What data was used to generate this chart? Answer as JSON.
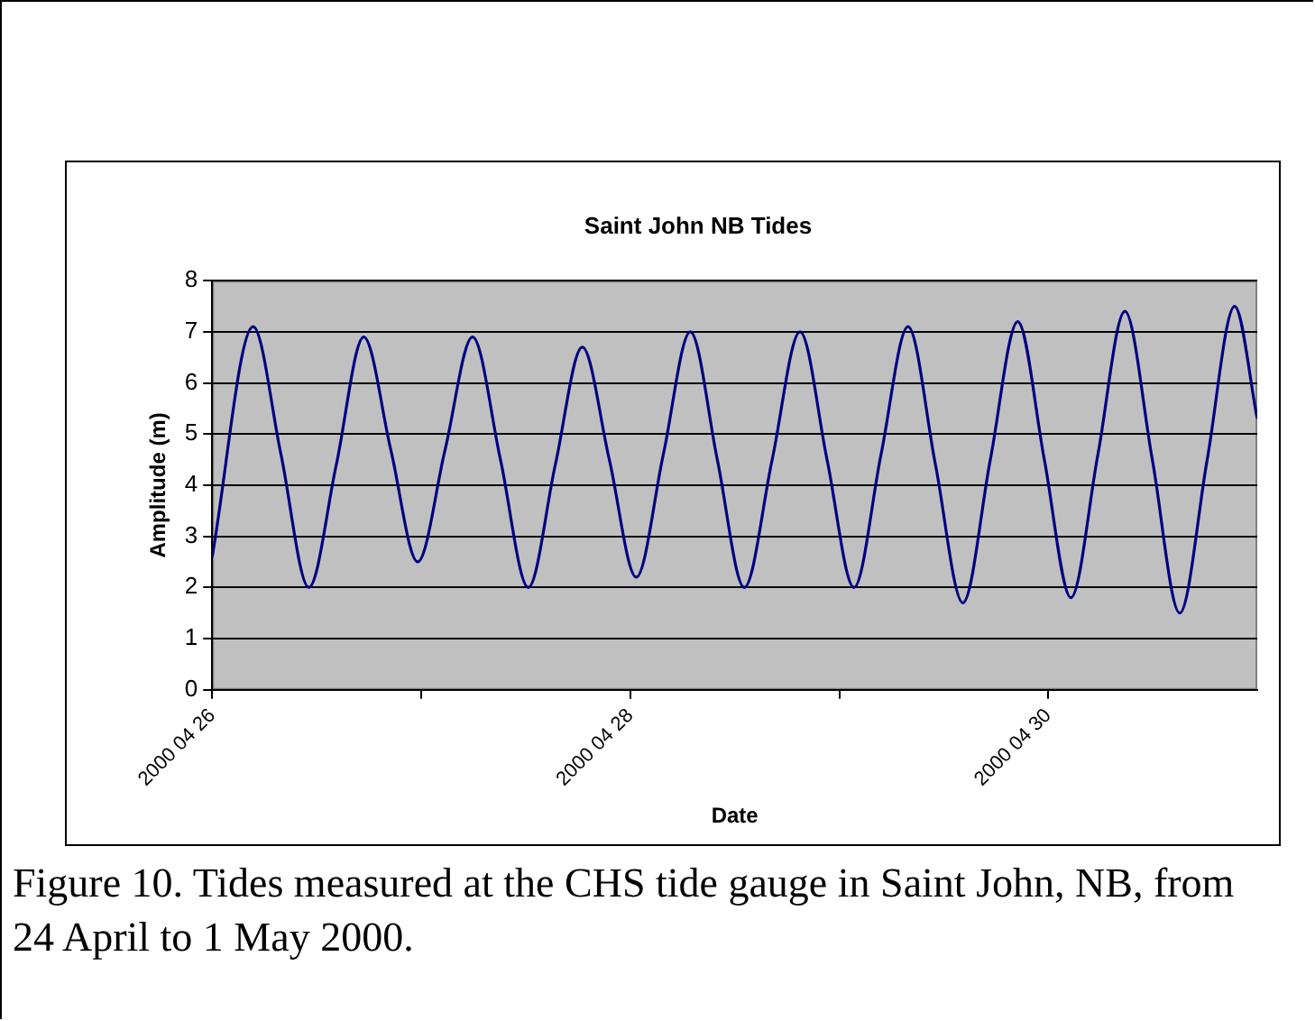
{
  "chart_data": {
    "type": "line",
    "title": "Saint John NB Tides",
    "xlabel": "Date",
    "ylabel": "Amplitude (m)",
    "x": [
      "2000-04-26T00:00",
      "2000-04-26T04:42",
      "2000-04-26T07:54",
      "2000-04-26T11:06",
      "2000-04-26T14:15",
      "2000-04-26T17:24",
      "2000-04-26T20:30",
      "2000-04-26T23:36",
      "2000-04-27T02:45",
      "2000-04-27T05:54",
      "2000-04-27T09:06",
      "2000-04-27T12:18",
      "2000-04-27T15:24",
      "2000-04-27T18:30",
      "2000-04-27T21:36",
      "2000-04-28T00:42",
      "2000-04-28T03:48",
      "2000-04-28T06:54",
      "2000-04-28T10:00",
      "2000-04-28T13:06",
      "2000-04-28T16:18",
      "2000-04-28T19:30",
      "2000-04-28T22:36",
      "2000-04-29T01:42",
      "2000-04-29T04:48",
      "2000-04-29T07:54",
      "2000-04-29T11:03",
      "2000-04-29T14:12",
      "2000-04-29T17:21",
      "2000-04-29T20:30",
      "2000-04-29T23:33",
      "2000-04-30T02:36",
      "2000-04-30T05:42",
      "2000-04-30T08:48",
      "2000-04-30T11:57",
      "2000-04-30T15:06",
      "2000-04-30T18:15",
      "2000-04-30T21:24",
      "2000-05-01T00:00"
    ],
    "series": [
      {
        "color": "#000080",
        "values": [
          2.6,
          7.1,
          4.6,
          2.0,
          4.4,
          6.9,
          4.7,
          2.5,
          4.7,
          6.9,
          4.5,
          2.0,
          4.4,
          6.7,
          4.5,
          2.2,
          4.6,
          7.0,
          4.5,
          2.0,
          4.5,
          7.0,
          4.5,
          2.0,
          4.6,
          7.1,
          4.4,
          1.7,
          4.5,
          7.2,
          4.5,
          1.8,
          4.6,
          7.4,
          4.5,
          1.5,
          4.5,
          7.5,
          5.3
        ]
      }
    ],
    "xlim": [
      "2000-04-26",
      "2000-05-01"
    ],
    "xticks": [
      {
        "value": "2000-04-26",
        "label": "2000 04 26"
      },
      {
        "value": "2000-04-27",
        "label": null
      },
      {
        "value": "2000-04-28",
        "label": "2000 04 28"
      },
      {
        "value": "2000-04-29",
        "label": null
      },
      {
        "value": "2000-04-30",
        "label": "2000 04 30"
      }
    ],
    "ylim": [
      0,
      8
    ],
    "yticks": [
      0,
      1,
      2,
      3,
      4,
      5,
      6,
      7,
      8
    ],
    "grid": "y",
    "annotations": [
      "Figure 10. Tides measured at the CHS tide gauge in Saint John, NB, from 24 April to 1 May 2000."
    ]
  }
}
